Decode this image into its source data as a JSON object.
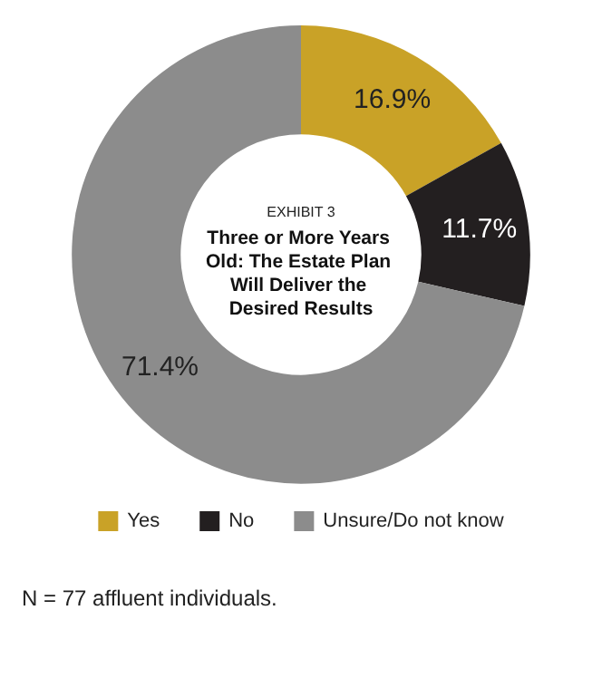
{
  "chart_data": {
    "type": "donut",
    "title": "Three or More Years Old: The Estate Plan Will Deliver the Desired Results",
    "subtitle": "EXHIBIT 3",
    "categories": [
      "Yes",
      "No",
      "Unsure/Do not know"
    ],
    "values": [
      16.9,
      11.7,
      71.4
    ],
    "colors": [
      "#c9a227",
      "#231f20",
      "#8c8c8c"
    ],
    "value_labels": [
      "16.9%",
      "11.7%",
      "71.4%"
    ],
    "legend": "bottom",
    "annotations": [
      "N = 77 affluent individuals."
    ]
  }
}
